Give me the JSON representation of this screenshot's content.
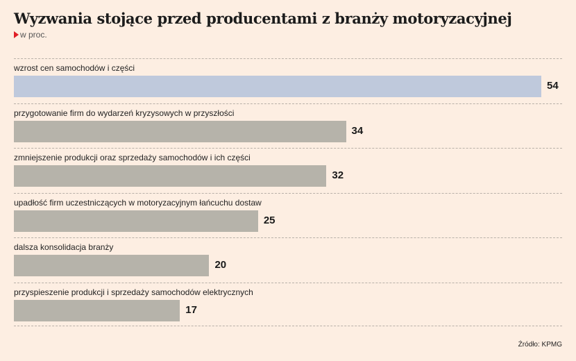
{
  "title": "Wyzwania stojące przed producentami z branży motoryzacyjnej",
  "subtitle": "w proc.",
  "source": "Źródło: KPMG",
  "colors": {
    "background": "#fdeee2",
    "highlight_bar": "#bfc9dc",
    "bar": "#b6b3aa",
    "accent": "#e01e26"
  },
  "chart_data": {
    "type": "bar",
    "orientation": "horizontal",
    "title": "Wyzwania stojące przed producentami z branży motoryzacyjnej",
    "ylabel": "w proc.",
    "xlim": [
      0,
      54
    ],
    "grid": false,
    "categories": [
      "wzrost cen samochodów i części",
      "przygotowanie firm do wydarzeń kryzysowych w przyszłości",
      "zmniejszenie produkcji oraz sprzedaży samochodów i ich części",
      "upadłość firm uczestniczących w motoryzacyjnym łańcuchu dostaw",
      "dalsza konsolidacja branży",
      "przyspieszenie produkcji i sprzedaży samochodów elektrycznych"
    ],
    "values": [
      54,
      34,
      32,
      25,
      20,
      17
    ],
    "highlighted": [
      0
    ]
  }
}
